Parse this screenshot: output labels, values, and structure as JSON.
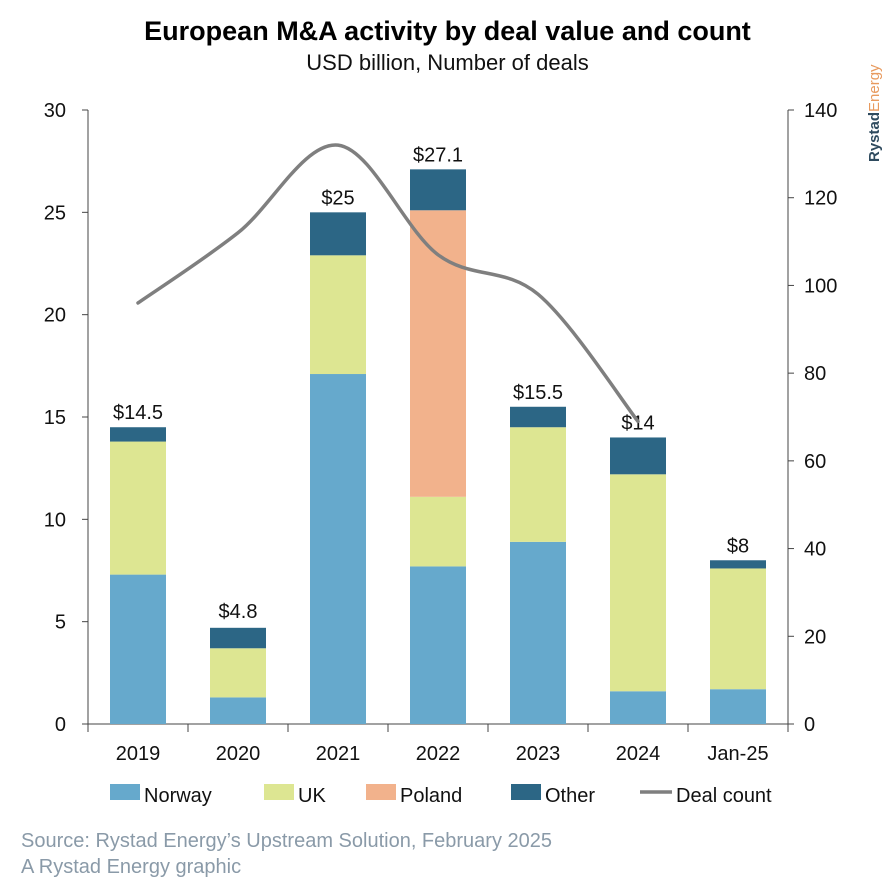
{
  "header": {
    "title": "European M&A activity by deal value and count",
    "subtitle": "USD billion, Number of deals"
  },
  "brand": {
    "part1": "Rystad",
    "part2": "Energy",
    "color1": "#2e4a5e",
    "color2": "#e89a5e"
  },
  "footer": {
    "source": "Source: Rystad Energy’s Upstream Solution, February 2025",
    "credit": "A Rystad Energy graphic"
  },
  "chart_data": {
    "type": "bar",
    "stacked": true,
    "categories": [
      "2019",
      "2020",
      "2021",
      "2022",
      "2023",
      "2024",
      "Jan-25"
    ],
    "series": [
      {
        "name": "Norway",
        "color": "#66a9cc",
        "values": [
          7.3,
          1.3,
          17.1,
          7.7,
          8.9,
          1.6,
          1.7
        ]
      },
      {
        "name": "UK",
        "color": "#dde692",
        "values": [
          6.5,
          2.4,
          5.8,
          3.4,
          5.6,
          10.6,
          5.9
        ]
      },
      {
        "name": "Poland",
        "color": "#f2b28c",
        "values": [
          0,
          0,
          0,
          14.0,
          0,
          0,
          0
        ]
      },
      {
        "name": "Other",
        "color": "#2c6685",
        "values": [
          0.7,
          1.0,
          2.1,
          2.0,
          1.0,
          1.8,
          0.4
        ]
      }
    ],
    "totals_labels": [
      "$14.5",
      "$4.8",
      "$25",
      "$27.1",
      "$15.5",
      "$14",
      "$8"
    ],
    "totals": [
      14.5,
      4.8,
      25,
      27.1,
      15.5,
      14,
      8
    ],
    "line": {
      "name": "Deal count",
      "color": "#7f7f7f",
      "axis": "right",
      "values": [
        96,
        112,
        132,
        107,
        98,
        69,
        null
      ]
    },
    "y_left": {
      "min": 0,
      "max": 30,
      "ticks": [
        0,
        5,
        10,
        15,
        20,
        25,
        30
      ]
    },
    "y_right": {
      "min": 0,
      "max": 140,
      "ticks": [
        0,
        20,
        40,
        60,
        80,
        100,
        120,
        140
      ]
    },
    "legend": {
      "position": "bottom"
    },
    "grid": false
  }
}
